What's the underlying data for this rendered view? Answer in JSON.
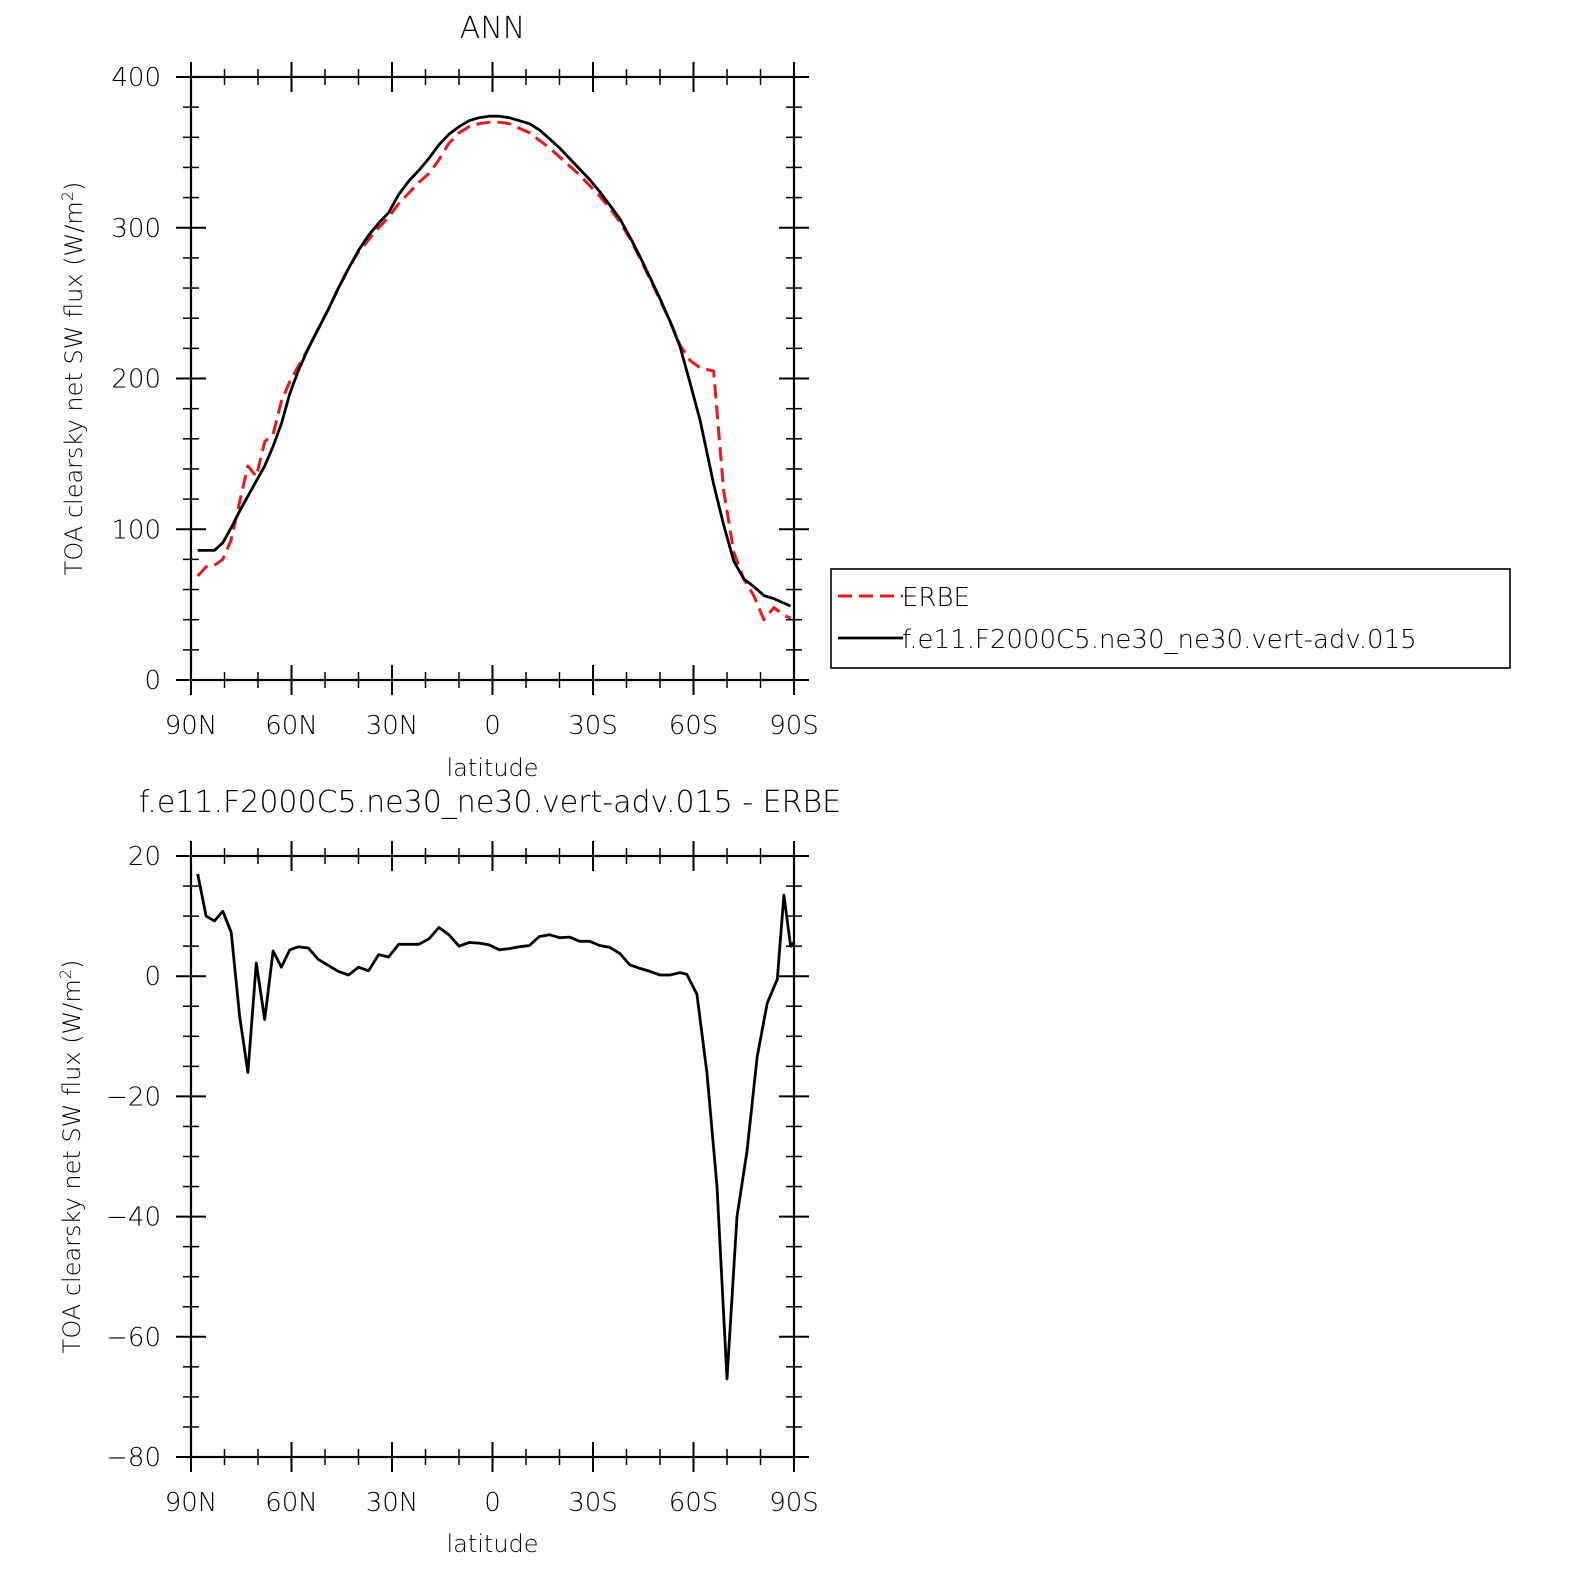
{
  "chart_data": [
    {
      "type": "line",
      "title": "ANN",
      "xlabel": "latitude",
      "ylabel": "TOA clearsky net SW flux (W/m²)",
      "ylabel_main": "TOA clearsky net SW flux (W/m",
      "ylabel_sup": "2",
      "ylabel_end": ")",
      "xlim": [
        -90,
        90
      ],
      "ylim": [
        0,
        400
      ],
      "x_ticks": [
        -90,
        -60,
        -30,
        0,
        30,
        60,
        90
      ],
      "x_tick_labels": [
        "90N",
        "60N",
        "30N",
        "0",
        "30S",
        "60S",
        "90S"
      ],
      "y_ticks": [
        0,
        100,
        200,
        300,
        400
      ],
      "y_tick_labels": [
        "0",
        "100",
        "200",
        "300",
        "400"
      ],
      "legend_position": "right",
      "series": [
        {
          "name": "ERBE",
          "color": "#e41a1c",
          "style": "dashed",
          "points": [
            [
              -88,
              69
            ],
            [
              -85.5,
              75
            ],
            [
              -83,
              76
            ],
            [
              -80.5,
              80
            ],
            [
              -78,
              93
            ],
            [
              -75.5,
              118
            ],
            [
              -73,
              142
            ],
            [
              -70.5,
              135
            ],
            [
              -68,
              158
            ],
            [
              -65.5,
              163
            ],
            [
              -63,
              185
            ],
            [
              -60.5,
              198
            ],
            [
              -58,
              208
            ],
            [
              -55,
              220
            ],
            [
              -52,
              233
            ],
            [
              -49,
              246
            ],
            [
              -46,
              260
            ],
            [
              -43,
              273
            ],
            [
              -40,
              284
            ],
            [
              -37,
              292
            ],
            [
              -34,
              300
            ],
            [
              -31,
              307
            ],
            [
              -28,
              316
            ],
            [
              -25,
              323
            ],
            [
              -22,
              330
            ],
            [
              -19,
              336
            ],
            [
              -16,
              345
            ],
            [
              -13,
              356
            ],
            [
              -10,
              363
            ],
            [
              -7,
              367
            ],
            [
              -4,
              369
            ],
            [
              -1,
              370
            ],
            [
              2,
              370
            ],
            [
              5,
              369
            ],
            [
              8,
              366
            ],
            [
              11,
              363
            ],
            [
              14,
              358
            ],
            [
              17,
              353
            ],
            [
              20,
              347
            ],
            [
              23,
              341
            ],
            [
              26,
              335
            ],
            [
              29,
              328
            ],
            [
              32,
              321
            ],
            [
              35,
              313
            ],
            [
              38,
              304
            ],
            [
              41,
              293
            ],
            [
              44,
              280
            ],
            [
              47,
              266
            ],
            [
              50,
              252
            ],
            [
              53,
              238
            ],
            [
              56,
              222
            ],
            [
              59,
              212
            ],
            [
              62,
              207
            ],
            [
              66,
              205
            ],
            [
              69,
              126
            ],
            [
              72,
              85
            ],
            [
              75,
              67
            ],
            [
              78,
              56
            ],
            [
              81,
              40
            ],
            [
              84,
              48
            ],
            [
              87,
              43
            ],
            [
              89,
              41
            ]
          ]
        },
        {
          "name": "f.e11.F2000C5.ne30_ne30.vert-adv.015",
          "color": "#000000",
          "style": "solid",
          "points": [
            [
              -88,
              86
            ],
            [
              -85.5,
              86
            ],
            [
              -83,
              86
            ],
            [
              -80.5,
              91
            ],
            [
              -78,
              101
            ],
            [
              -75.5,
              112
            ],
            [
              -73,
              122
            ],
            [
              -70.5,
              132
            ],
            [
              -68,
              142
            ],
            [
              -65.5,
              155
            ],
            [
              -63,
              170
            ],
            [
              -60.5,
              190
            ],
            [
              -58,
              205
            ],
            [
              -55,
              220
            ],
            [
              -52,
              233
            ],
            [
              -49,
              246
            ],
            [
              -46,
              260
            ],
            [
              -43,
              273
            ],
            [
              -40,
              285
            ],
            [
              -37,
              295
            ],
            [
              -34,
              303
            ],
            [
              -31,
              310
            ],
            [
              -28,
              322
            ],
            [
              -25,
              331
            ],
            [
              -22,
              338
            ],
            [
              -19,
              346
            ],
            [
              -16,
              355
            ],
            [
              -13,
              362
            ],
            [
              -10,
              367
            ],
            [
              -7,
              371
            ],
            [
              -4,
              373
            ],
            [
              -1,
              374
            ],
            [
              2,
              374
            ],
            [
              5,
              373
            ],
            [
              8,
              371
            ],
            [
              11,
              369
            ],
            [
              14,
              365
            ],
            [
              17,
              359
            ],
            [
              20,
              353
            ],
            [
              23,
              346
            ],
            [
              26,
              339
            ],
            [
              29,
              332
            ],
            [
              32,
              324
            ],
            [
              35,
              315
            ],
            [
              38,
              306
            ],
            [
              41,
              294
            ],
            [
              44,
              281
            ],
            [
              47,
              267
            ],
            [
              50,
              253
            ],
            [
              53,
              238
            ],
            [
              56,
              221
            ],
            [
              59,
              197
            ],
            [
              62,
              172
            ],
            [
              66,
              130
            ],
            [
              69,
              103
            ],
            [
              72,
              79
            ],
            [
              75,
              67
            ],
            [
              78,
              62
            ],
            [
              81,
              56
            ],
            [
              84,
              54
            ],
            [
              87,
              51
            ],
            [
              89,
              49
            ]
          ]
        }
      ]
    },
    {
      "type": "line",
      "title": "f.e11.F2000C5.ne30_ne30.vert-adv.015 - ERBE",
      "xlabel": "latitude",
      "ylabel": "TOA clearsky net SW flux (W/m²)",
      "ylabel_main": "TOA clearsky net SW flux (W/m",
      "ylabel_sup": "2",
      "ylabel_end": ")",
      "xlim": [
        -90,
        90
      ],
      "ylim": [
        -80,
        20
      ],
      "x_ticks": [
        -90,
        -60,
        -30,
        0,
        30,
        60,
        90
      ],
      "x_tick_labels": [
        "90N",
        "60N",
        "30N",
        "0",
        "30S",
        "60S",
        "90S"
      ],
      "y_ticks": [
        -80,
        -60,
        -40,
        -20,
        0,
        20
      ],
      "y_tick_labels": [
        "−80",
        "−60",
        "−40",
        "−20",
        "0",
        "20"
      ],
      "series": [
        {
          "color": "#000000",
          "style": "solid",
          "points": [
            [
              -88,
              17
            ],
            [
              -85.5,
              10
            ],
            [
              -83,
              9.2
            ],
            [
              -80.5,
              10.8
            ],
            [
              -78,
              7.3
            ],
            [
              -75.5,
              -6.6
            ],
            [
              -73,
              -16
            ],
            [
              -70.5,
              2.2
            ],
            [
              -68,
              -7.2
            ],
            [
              -65.5,
              4.2
            ],
            [
              -63,
              1.5
            ],
            [
              -60.5,
              4.4
            ],
            [
              -58,
              4.9
            ],
            [
              -55,
              4.7
            ],
            [
              -52,
              2.8
            ],
            [
              -49,
              1.8
            ],
            [
              -46,
              0.8
            ],
            [
              -43,
              0.2
            ],
            [
              -40,
              1.5
            ],
            [
              -37,
              0.9
            ],
            [
              -34,
              3.6
            ],
            [
              -31,
              3.2
            ],
            [
              -28,
              5.3
            ],
            [
              -25,
              5.3
            ],
            [
              -22,
              5.3
            ],
            [
              -19,
              6.2
            ],
            [
              -16,
              8.1
            ],
            [
              -13,
              6.9
            ],
            [
              -10,
              5.0
            ],
            [
              -7,
              5.6
            ],
            [
              -4,
              5.5
            ],
            [
              -1,
              5.2
            ],
            [
              2,
              4.4
            ],
            [
              5,
              4.6
            ],
            [
              8,
              4.9
            ],
            [
              11,
              5.1
            ],
            [
              14,
              6.6
            ],
            [
              17,
              6.9
            ],
            [
              20,
              6.4
            ],
            [
              23,
              6.5
            ],
            [
              26,
              5.8
            ],
            [
              29,
              5.8
            ],
            [
              32,
              5.1
            ],
            [
              35,
              4.8
            ],
            [
              38,
              3.8
            ],
            [
              41,
              1.9
            ],
            [
              44,
              1.3
            ],
            [
              47,
              0.8
            ],
            [
              50,
              0.2
            ],
            [
              53,
              0.2
            ],
            [
              56,
              0.6
            ],
            [
              58,
              0.3
            ],
            [
              61,
              -3.0
            ],
            [
              64,
              -16
            ],
            [
              67,
              -35
            ],
            [
              70,
              -67
            ],
            [
              73,
              -40
            ],
            [
              76,
              -29
            ],
            [
              79,
              -13.5
            ],
            [
              82,
              -4.5
            ],
            [
              85,
              -0.5
            ],
            [
              87,
              13.5
            ],
            [
              89,
              5.0
            ],
            [
              91,
              6.3
            ]
          ]
        }
      ]
    }
  ]
}
